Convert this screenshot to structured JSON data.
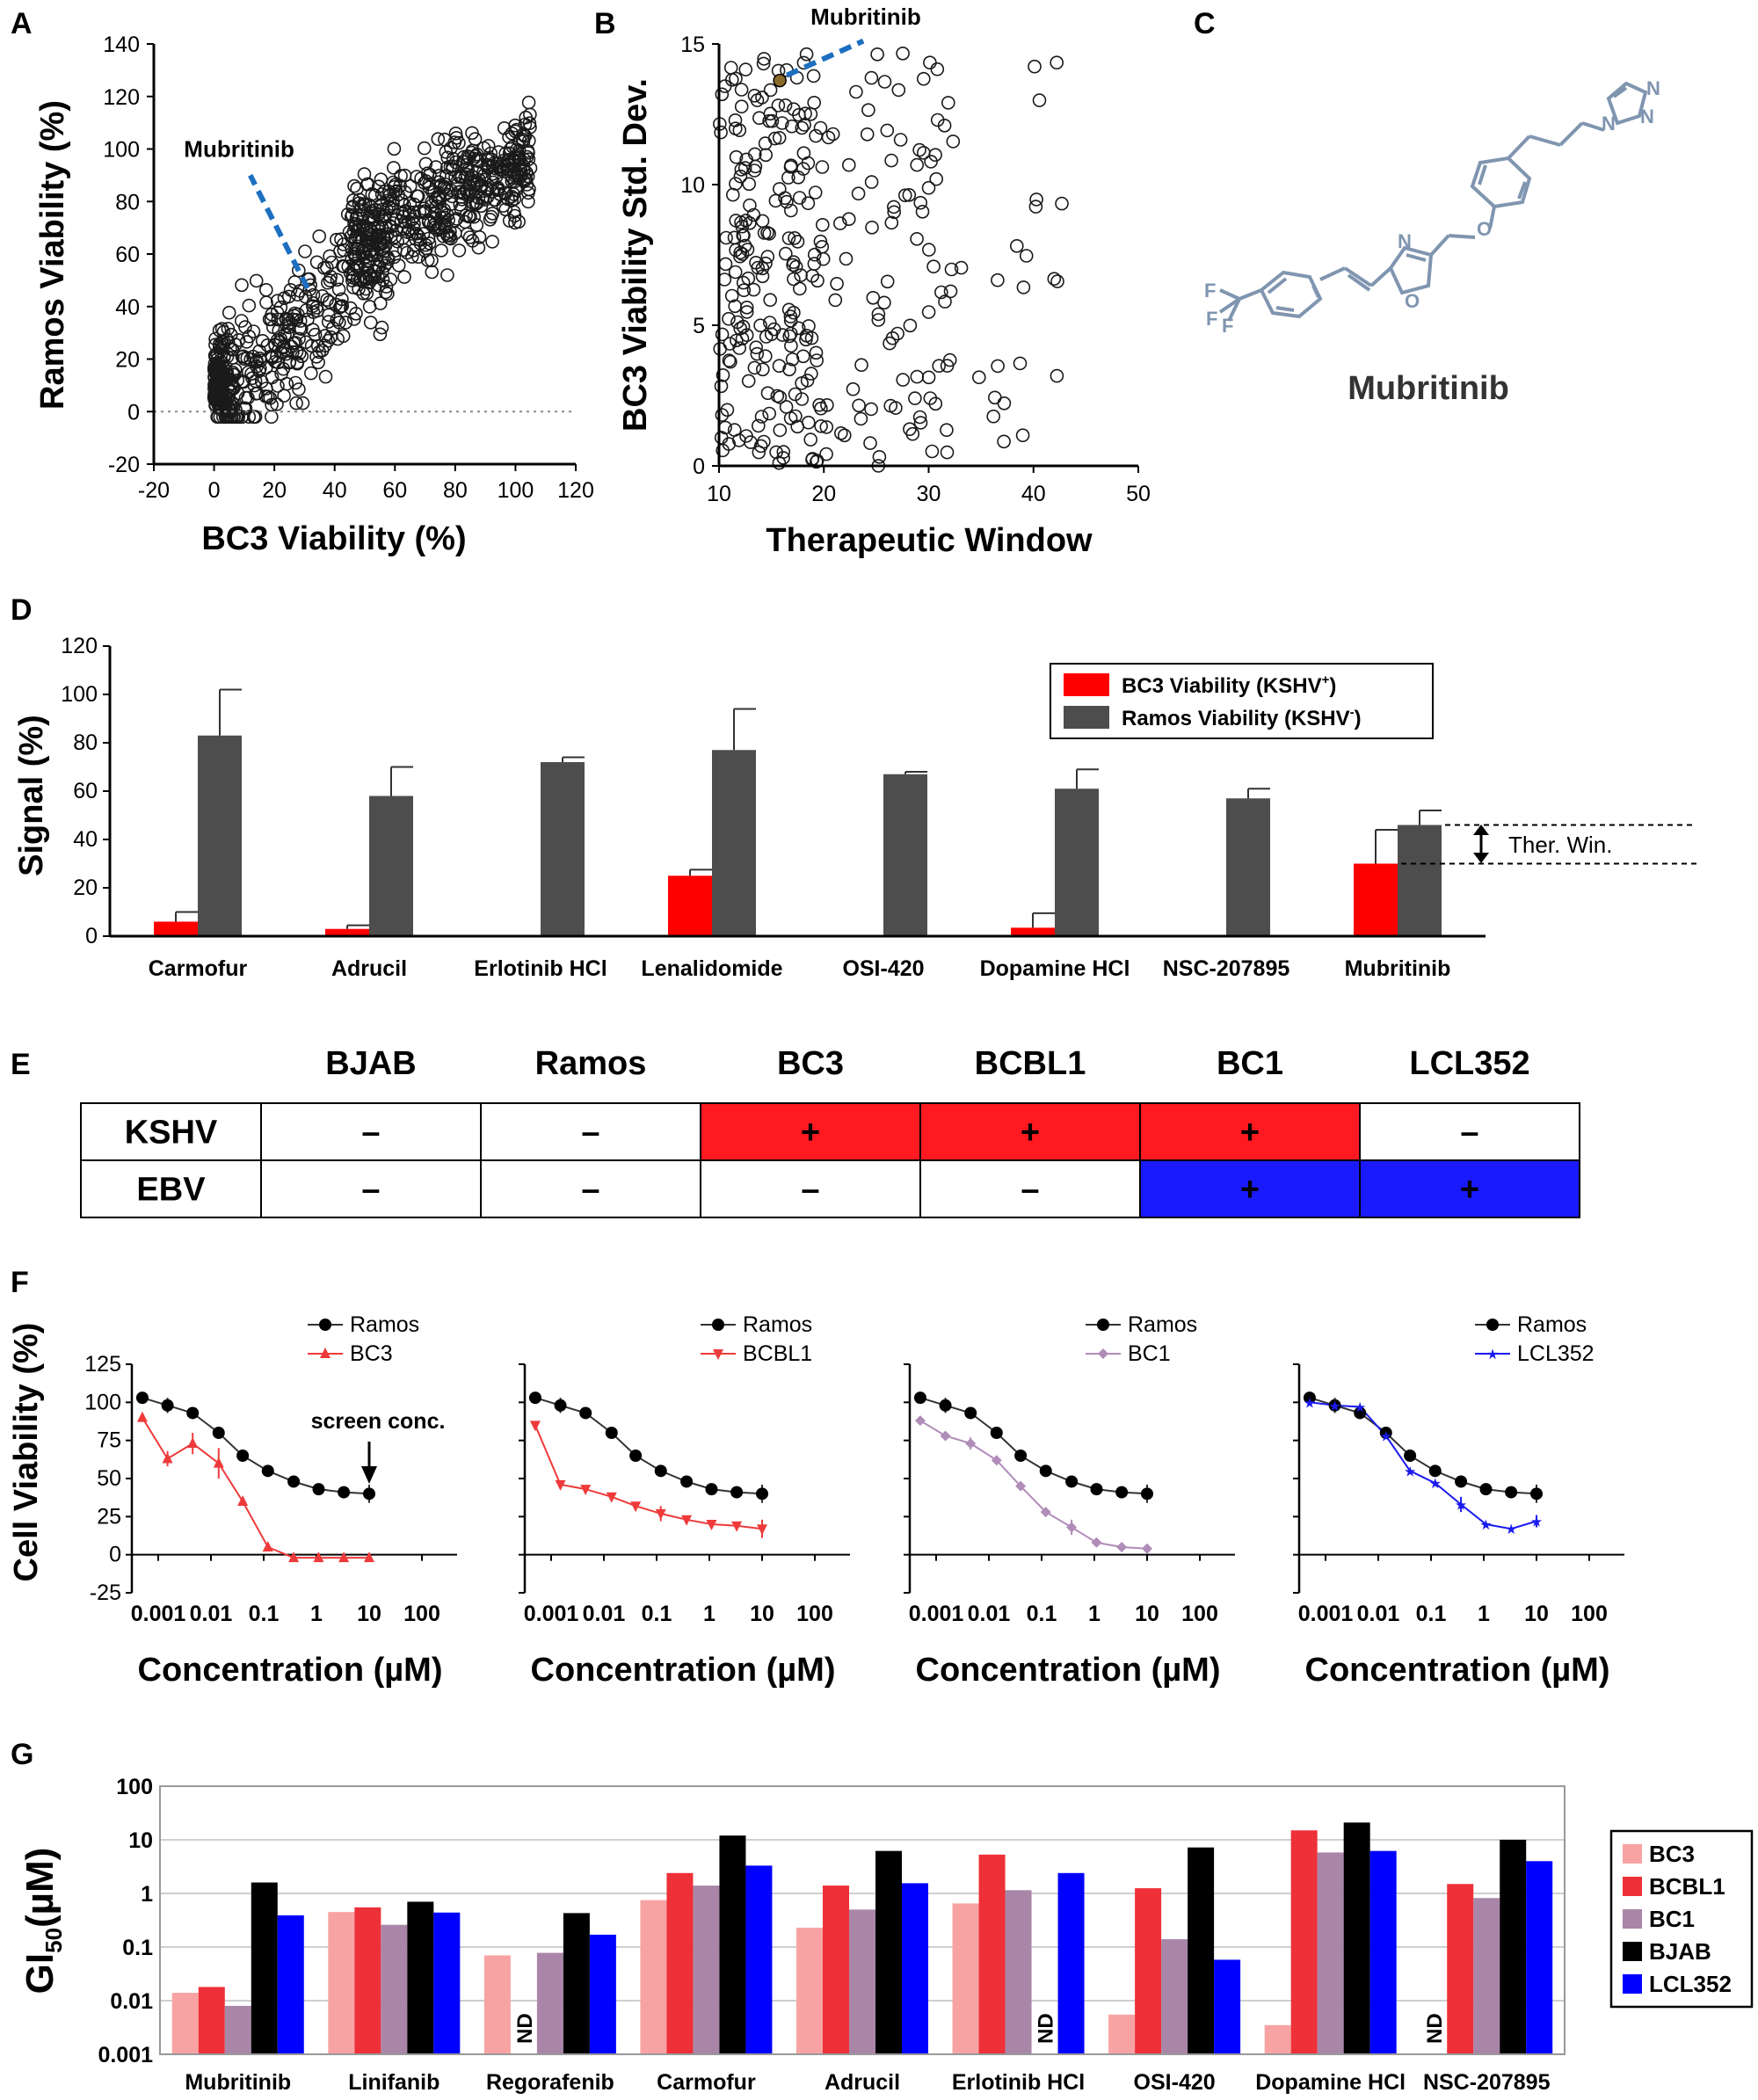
{
  "panels": {
    "A": {
      "letter": "A",
      "chart_data": {
        "type": "scatter",
        "xlabel": "BC3 Viability (%)",
        "ylabel": "Ramos Viability (%)",
        "xlim": [
          -20,
          120
        ],
        "ylim": [
          -20,
          140
        ],
        "xticks": [
          "-20",
          "0",
          "20",
          "40",
          "60",
          "80",
          "100",
          "120"
        ],
        "yticks": [
          "-20",
          "0",
          "20",
          "40",
          "60",
          "80",
          "100",
          "120",
          "140"
        ],
        "annotation": "Mubritinib",
        "highlight": {
          "x": 31,
          "y": 47
        },
        "reference_line_y": 0,
        "point_count": 900
      }
    },
    "B": {
      "letter": "B",
      "chart_data": {
        "type": "scatter",
        "xlabel": "Therapeutic Window",
        "ylabel": "BC3 Viability Std. Dev.",
        "xlim": [
          10,
          50
        ],
        "ylim": [
          0,
          15
        ],
        "xticks": [
          "10",
          "20",
          "30",
          "40",
          "50"
        ],
        "yticks": [
          "0",
          "5",
          "10",
          "15"
        ],
        "annotation": "Mubritinib",
        "highlight": {
          "x": 15.8,
          "y": 13.7
        },
        "highlight_color": "#8B6B2A",
        "point_count": 330
      }
    },
    "C": {
      "letter": "C",
      "compound_name": "Mubritinib",
      "atom_labels": [
        "F",
        "F",
        "F",
        "N",
        "O",
        "O",
        "N",
        "N",
        "N"
      ],
      "structure_color": "#7F95B0"
    },
    "D": {
      "letter": "D",
      "chart_data": {
        "type": "bar",
        "ylabel": "Signal (%)",
        "ylim": [
          0,
          120
        ],
        "yticks": [
          "0",
          "20",
          "40",
          "60",
          "80",
          "100",
          "120"
        ],
        "categories": [
          "Carmofur",
          "Adrucil",
          "Erlotinib HCl",
          "Lenalidomide",
          "OSI-420",
          "Dopamine HCl",
          "NSC-207895",
          "Mubritinib"
        ],
        "series": [
          {
            "name": "BC3 Viability (KSHV",
            "name_sup": "+",
            "name_end": ")",
            "color": "#FF0000",
            "values": [
              6,
              3,
              0.5,
              25,
              0.3,
              3.5,
              0,
              30
            ],
            "errors": [
              4,
              1.5,
              0,
              2.5,
              0,
              6,
              0,
              14
            ]
          },
          {
            "name": "Ramos Viability (KSHV",
            "name_sup": "-",
            "name_end": ")",
            "color": "#4D4D4D",
            "values": [
              83,
              58,
              72,
              77,
              67,
              61,
              57,
              46
            ],
            "errors": [
              19,
              12,
              2,
              17,
              1,
              8,
              4,
              6
            ]
          }
        ],
        "annotation": "Ther. Win."
      }
    },
    "E": {
      "letter": "E",
      "columns": [
        "BJAB",
        "Ramos",
        "BC3",
        "BCBL1",
        "BC1",
        "LCL352"
      ],
      "rows": [
        {
          "label": "KSHV",
          "cells": [
            "–",
            "–",
            "+",
            "+",
            "+",
            "–"
          ],
          "fills": [
            "#FFFFFF",
            "#FFFFFF",
            "#FF1A22",
            "#FF1A22",
            "#FF1A22",
            "#FFFFFF"
          ]
        },
        {
          "label": "EBV",
          "cells": [
            "–",
            "–",
            "–",
            "–",
            "+",
            "+"
          ],
          "fills": [
            "#FFFFFF",
            "#FFFFFF",
            "#FFFFFF",
            "#FFFFFF",
            "#1A1AFF",
            "#1A1AFF"
          ]
        }
      ]
    },
    "F": {
      "letter": "F",
      "ylabel": "Cell Viability (%)",
      "xlabel": "Concentration (µM)",
      "yticks": [
        "-25",
        "0",
        "25",
        "50",
        "75",
        "100",
        "125"
      ],
      "xticks": [
        "0.001",
        "0.01",
        "0.1",
        "1",
        "10",
        "100"
      ],
      "screen_label": "screen conc.",
      "chart_data": [
        {
          "type": "line",
          "reference": "Ramos",
          "target": "BC3",
          "color": "#EE3A3A",
          "marker": "triangle-up",
          "x": [
            0.0005,
            0.0015,
            0.0045,
            0.014,
            0.04,
            0.12,
            0.37,
            1.1,
            3.3,
            10
          ],
          "ramos": [
            103,
            98,
            93,
            80,
            65,
            55,
            48,
            43,
            41,
            40
          ],
          "ramos_err": [
            0,
            5,
            0,
            4,
            0,
            0,
            4,
            0,
            3,
            6
          ],
          "values": [
            90,
            63,
            73,
            60,
            35,
            5,
            -2,
            -2,
            -2,
            -2
          ],
          "errors": [
            0,
            5,
            7,
            10,
            0,
            0,
            0,
            0,
            0,
            0
          ]
        },
        {
          "type": "line",
          "reference": "Ramos",
          "target": "BCBL1",
          "color": "#EE3A3A",
          "marker": "triangle-down",
          "x": [
            0.0005,
            0.0015,
            0.0045,
            0.014,
            0.04,
            0.12,
            0.37,
            1.1,
            3.3,
            10
          ],
          "ramos": [
            103,
            98,
            93,
            80,
            65,
            55,
            48,
            43,
            41,
            40
          ],
          "ramos_err": [
            0,
            5,
            0,
            4,
            0,
            0,
            4,
            0,
            3,
            6
          ],
          "values": [
            85,
            46,
            43,
            38,
            32,
            27,
            23,
            20,
            19,
            17
          ],
          "errors": [
            0,
            0,
            0,
            0,
            0,
            5,
            0,
            0,
            0,
            6
          ]
        },
        {
          "type": "line",
          "reference": "Ramos",
          "target": "BC1",
          "color": "#B08CB8",
          "marker": "diamond",
          "x": [
            0.0005,
            0.0015,
            0.0045,
            0.014,
            0.04,
            0.12,
            0.37,
            1.1,
            3.3,
            10
          ],
          "ramos": [
            103,
            98,
            93,
            80,
            65,
            55,
            48,
            43,
            41,
            40
          ],
          "ramos_err": [
            0,
            5,
            0,
            4,
            0,
            0,
            4,
            0,
            3,
            6
          ],
          "values": [
            88,
            78,
            73,
            62,
            45,
            28,
            18,
            8,
            5,
            4
          ],
          "errors": [
            0,
            0,
            4,
            0,
            0,
            3,
            5,
            0,
            0,
            0
          ]
        },
        {
          "type": "line",
          "reference": "Ramos",
          "target": "LCL352",
          "color": "#1A1AEE",
          "marker": "star",
          "x": [
            0.0005,
            0.0015,
            0.0045,
            0.014,
            0.04,
            0.12,
            0.37,
            1.1,
            3.3,
            10
          ],
          "ramos": [
            103,
            98,
            93,
            80,
            65,
            55,
            48,
            43,
            41,
            40
          ],
          "ramos_err": [
            0,
            5,
            0,
            4,
            0,
            0,
            4,
            0,
            3,
            6
          ],
          "values": [
            100,
            98,
            97,
            78,
            55,
            47,
            33,
            20,
            17,
            22
          ],
          "errors": [
            0,
            0,
            0,
            0,
            0,
            0,
            5,
            0,
            0,
            4
          ]
        }
      ]
    },
    "G": {
      "letter": "G",
      "chart_data": {
        "type": "bar",
        "ylabel": "GI",
        "ylabel_sub": "50",
        "ylabel_end": "(µM)",
        "yscale": "log",
        "ylim": [
          0.001,
          100
        ],
        "yticks": [
          "0.001",
          "0.01",
          "0.1",
          "1",
          "10",
          "100"
        ],
        "categories": [
          "Mubritinib",
          "Linifanib",
          "Regorafenib",
          "Carmofur",
          "Adrucil",
          "Erlotinib HCl",
          "OSI-420",
          "Dopamine HCl",
          "NSC-207895"
        ],
        "series": [
          {
            "name": "BC3",
            "color": "#F8A3A3",
            "values": [
              0.014,
              0.45,
              0.07,
              0.75,
              0.23,
              0.65,
              0.0055,
              0.0035,
              null
            ]
          },
          {
            "name": "BCBL1",
            "color": "#EE3038",
            "values": [
              0.018,
              0.55,
              null,
              2.4,
              1.4,
              5.3,
              1.25,
              15,
              1.5
            ]
          },
          {
            "name": "BC1",
            "color": "#A986A8",
            "values": [
              0.008,
              0.26,
              0.078,
              1.4,
              0.5,
              1.15,
              0.14,
              5.8,
              0.82
            ]
          },
          {
            "name": "BJAB",
            "color": "#000000",
            "values": [
              1.6,
              0.7,
              0.43,
              12,
              6.2,
              null,
              7.2,
              21,
              10
            ]
          },
          {
            "name": "LCL352",
            "color": "#0000FF",
            "values": [
              0.39,
              0.44,
              0.17,
              3.3,
              1.55,
              2.4,
              0.058,
              6.2,
              4
            ]
          }
        ],
        "nd_label": "ND"
      }
    }
  }
}
